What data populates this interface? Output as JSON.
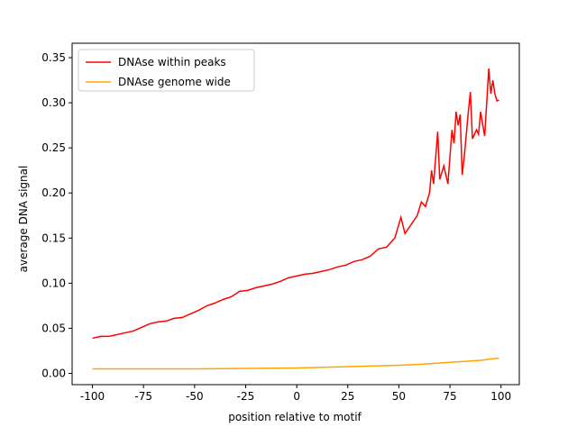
{
  "chart_data": {
    "type": "line",
    "xlabel": "position relative to motif",
    "ylabel": "average DNA signal",
    "xlim": [
      -109.95,
      108.95
    ],
    "ylim": [
      -0.0125,
      0.366
    ],
    "xticks": [
      -100,
      -75,
      -50,
      -25,
      0,
      25,
      50,
      75,
      100
    ],
    "yticks": [
      {
        "value": 0,
        "label": "0.00"
      },
      {
        "value": 0.05,
        "label": "0.05"
      },
      {
        "value": 0.1,
        "label": "0.10"
      },
      {
        "value": 0.15,
        "label": "0.15"
      },
      {
        "value": 0.2,
        "label": "0.20"
      },
      {
        "value": 0.25,
        "label": "0.25"
      },
      {
        "value": 0.3,
        "label": "0.30"
      },
      {
        "value": 0.35,
        "label": "0.35"
      }
    ],
    "grid": false,
    "legend": "upper left",
    "series": [
      {
        "name": "DNAse within peaks",
        "color": "#ff0000",
        "x": [
          -100,
          -96,
          -92,
          -88,
          -84,
          -80,
          -76,
          -72,
          -68,
          -64,
          -60,
          -56,
          -52,
          -48,
          -44,
          -40,
          -36,
          -32,
          -28,
          -24,
          -20,
          -16,
          -12,
          -8,
          -4,
          0,
          4,
          8,
          12,
          16,
          20,
          24,
          28,
          32,
          36,
          40,
          44,
          48,
          51,
          53,
          56,
          59,
          61,
          63,
          65,
          66,
          67,
          69,
          70,
          72,
          74,
          76,
          77,
          78,
          79,
          80,
          81,
          82,
          84,
          85,
          86,
          88,
          89,
          90,
          92,
          93,
          94,
          95,
          96,
          97,
          98,
          99
        ],
        "values": [
          0.039,
          0.041,
          0.041,
          0.043,
          0.045,
          0.047,
          0.051,
          0.055,
          0.057,
          0.058,
          0.061,
          0.062,
          0.066,
          0.07,
          0.075,
          0.078,
          0.082,
          0.085,
          0.091,
          0.092,
          0.095,
          0.097,
          0.099,
          0.102,
          0.106,
          0.108,
          0.11,
          0.111,
          0.113,
          0.115,
          0.118,
          0.12,
          0.124,
          0.126,
          0.13,
          0.138,
          0.14,
          0.15,
          0.173,
          0.155,
          0.165,
          0.175,
          0.19,
          0.185,
          0.2,
          0.225,
          0.21,
          0.268,
          0.215,
          0.23,
          0.21,
          0.27,
          0.255,
          0.29,
          0.275,
          0.287,
          0.22,
          0.24,
          0.29,
          0.312,
          0.26,
          0.27,
          0.265,
          0.29,
          0.263,
          0.3,
          0.338,
          0.31,
          0.325,
          0.31,
          0.302,
          0.303
        ]
      },
      {
        "name": "DNAse genome wide",
        "color": "#ffa500",
        "x": [
          -100,
          -75,
          -50,
          -25,
          0,
          25,
          50,
          60,
          70,
          80,
          90,
          95,
          99
        ],
        "values": [
          0.005,
          0.005,
          0.005,
          0.0055,
          0.006,
          0.0075,
          0.009,
          0.01,
          0.0115,
          0.013,
          0.0145,
          0.016,
          0.017
        ]
      }
    ]
  }
}
